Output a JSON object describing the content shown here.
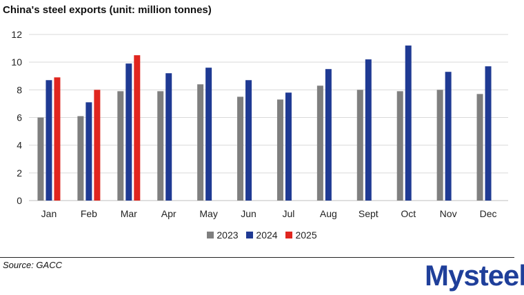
{
  "title": "China's steel exports (unit: million tonnes)",
  "source": "Source: GACC",
  "logo_text": "Mysteel",
  "colors": {
    "2023": "#7f7f7f",
    "2024": "#1f3a93",
    "2025": "#e0261f",
    "grid": "#d9d9d9",
    "logo": "#1f3f9a"
  },
  "chart_data": {
    "type": "bar",
    "title": "China's steel exports (unit: million tonnes)",
    "xlabel": "",
    "ylabel": "",
    "ylim": [
      0,
      12
    ],
    "yticks": [
      0,
      2,
      4,
      6,
      8,
      10,
      12
    ],
    "grid": true,
    "legend_position": "bottom",
    "categories": [
      "Jan",
      "Feb",
      "Mar",
      "Apr",
      "May",
      "Jun",
      "Jul",
      "Aug",
      "Sept",
      "Oct",
      "Nov",
      "Dec"
    ],
    "series": [
      {
        "name": "2023",
        "values": [
          6.0,
          6.1,
          7.9,
          7.9,
          8.4,
          7.5,
          7.3,
          8.3,
          8.0,
          7.9,
          8.0,
          7.7
        ]
      },
      {
        "name": "2024",
        "values": [
          8.7,
          7.1,
          9.9,
          9.2,
          9.6,
          8.7,
          7.8,
          9.5,
          10.2,
          11.2,
          9.3,
          9.7
        ]
      },
      {
        "name": "2025",
        "values": [
          8.9,
          8.0,
          10.5,
          null,
          null,
          null,
          null,
          null,
          null,
          null,
          null,
          null
        ]
      }
    ]
  }
}
